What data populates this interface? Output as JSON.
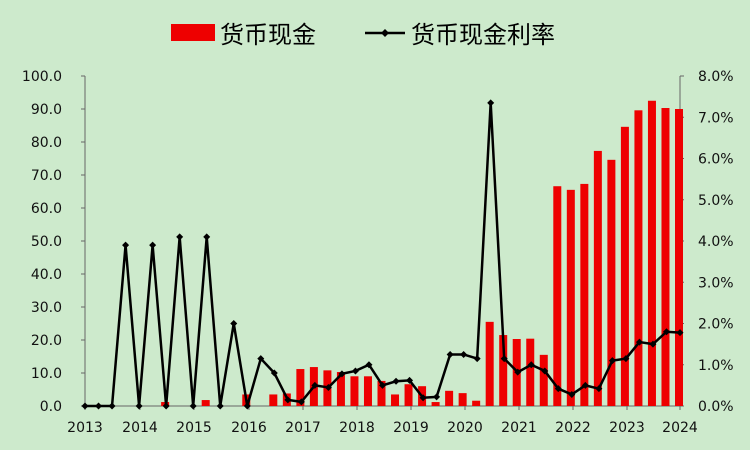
{
  "chart_data": {
    "type": "bar+line",
    "legend": [
      "货币现金",
      "货币现金利率"
    ],
    "legend_position": "top",
    "colors": {
      "bar": "#ee0000",
      "line": "#000000",
      "background": "#cdeacc"
    },
    "x_tick_labels": [
      "2013",
      "2014",
      "2015",
      "2016",
      "2017",
      "2018",
      "2019",
      "2020",
      "2021",
      "2022",
      "2023",
      "2024"
    ],
    "left_axis": {
      "ylim": [
        0,
        100
      ],
      "tick_labels": [
        "0.0",
        "10.0",
        "20.0",
        "30.0",
        "40.0",
        "50.0",
        "60.0",
        "70.0",
        "80.0",
        "90.0",
        "100.0"
      ]
    },
    "right_axis": {
      "ylim": [
        0,
        8
      ],
      "tick_labels": [
        "0.0%",
        "1.0%",
        "2.0%",
        "3.0%",
        "4.0%",
        "5.0%",
        "6.0%",
        "7.0%",
        "8.0%"
      ]
    },
    "grid": false,
    "series": [
      {
        "name": "货币现金",
        "type": "bar",
        "axis": "left",
        "values": [
          0,
          0,
          0,
          1.2,
          0,
          0,
          1.8,
          0,
          0,
          3.5,
          0,
          3.5,
          3.8,
          11.2,
          11.8,
          10.8,
          10.3,
          9.0,
          9.0,
          7.6,
          3.5,
          6.6,
          6.0,
          1.2,
          4.6,
          3.9,
          1.6,
          25.5,
          21.5,
          20.3,
          20.4,
          15.5,
          66.6,
          65.5,
          67.3,
          77.3,
          74.6,
          84.6,
          89.6,
          92.5,
          90.3,
          90.0
        ]
      },
      {
        "name": "货币现金利率",
        "type": "line",
        "axis": "right",
        "values": [
          0,
          0,
          0,
          3.9,
          0,
          3.9,
          0,
          4.1,
          0,
          4.1,
          0,
          2.0,
          0,
          1.15,
          0.8,
          0.15,
          0.1,
          0.5,
          0.45,
          0.78,
          0.85,
          1.0,
          0.5,
          0.6,
          0.62,
          0.2,
          0.22,
          1.25,
          1.25,
          1.15,
          7.35,
          1.15,
          0.82,
          1.0,
          0.85,
          0.42,
          0.28,
          0.5,
          0.42,
          1.1,
          1.15,
          1.55,
          1.5,
          1.8,
          1.78
        ]
      }
    ]
  }
}
